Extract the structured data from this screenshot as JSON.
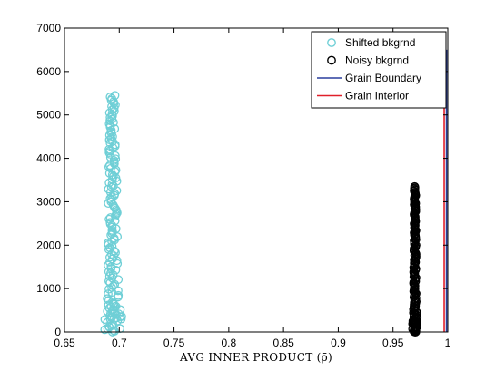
{
  "chart_data": {
    "type": "scatter",
    "title": "",
    "xlabel": "AVG INNER PRODUCT (ρ̄)",
    "ylabel": "",
    "xlim": [
      0.65,
      1.0
    ],
    "ylim": [
      0,
      7000
    ],
    "xticks": [
      0.65,
      0.7,
      0.75,
      0.8,
      0.85,
      0.9,
      0.95,
      1.0
    ],
    "xtick_labels": [
      "0.65",
      "0.7",
      "0.75",
      "0.8",
      "0.85",
      "0.9",
      "0.95",
      "1"
    ],
    "yticks": [
      0,
      1000,
      2000,
      3000,
      4000,
      5000,
      6000,
      7000
    ],
    "ytick_labels": [
      "0",
      "1000",
      "2000",
      "3000",
      "4000",
      "5000",
      "6000",
      "7000"
    ],
    "grid": false,
    "legend_position": "top-right",
    "series": [
      {
        "name": "Shifted bkgrnd",
        "kind": "scatter-open-circle",
        "color": "#6fcfd6",
        "x_center": 0.694,
        "x_spread": 0.006,
        "y_max": 5450,
        "count": 150
      },
      {
        "name": "Noisy bkgrnd",
        "kind": "scatter-open-circle",
        "color": "#000000",
        "x_center": 0.97,
        "x_spread": 0.0015,
        "y_max": 3350,
        "count": 130
      },
      {
        "name": "Grain Boundary",
        "kind": "line",
        "color": "#2a3f9e",
        "x": 0.9988,
        "y": [
          0,
          6500
        ]
      },
      {
        "name": "Grain Interior",
        "kind": "line",
        "color": "#e0202a",
        "x": 0.9967,
        "y": [
          0,
          6300
        ]
      }
    ]
  }
}
